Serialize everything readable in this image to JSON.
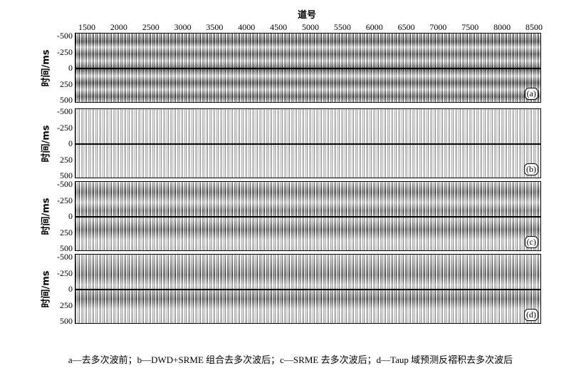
{
  "figure": {
    "x_axis": {
      "title": "道号",
      "ticks": [
        1500,
        2000,
        2500,
        3000,
        3500,
        4000,
        4500,
        5000,
        5500,
        6000,
        6500,
        7000,
        7500,
        8000,
        8500
      ]
    },
    "panels": [
      {
        "y_label": "时间/ms",
        "y_ticks": [
          -500,
          -250,
          0,
          250,
          500
        ],
        "tag": "(a)"
      },
      {
        "y_label": "时间/ms",
        "y_ticks": [
          -500,
          -250,
          0,
          250,
          500
        ],
        "tag": "(b)"
      },
      {
        "y_label": "时间/ms",
        "y_ticks": [
          -500,
          -250,
          0,
          250,
          500
        ],
        "tag": "(c)"
      },
      {
        "y_label": "时间/ms",
        "y_ticks": [
          -500,
          -250,
          0,
          250,
          500
        ],
        "tag": "(d)"
      }
    ],
    "caption": "a—去多次波前；b—DWD+SRME 组合去多次波后；c—SRME 去多次波后；d—Taup 域预测反褶积去多次波后"
  }
}
